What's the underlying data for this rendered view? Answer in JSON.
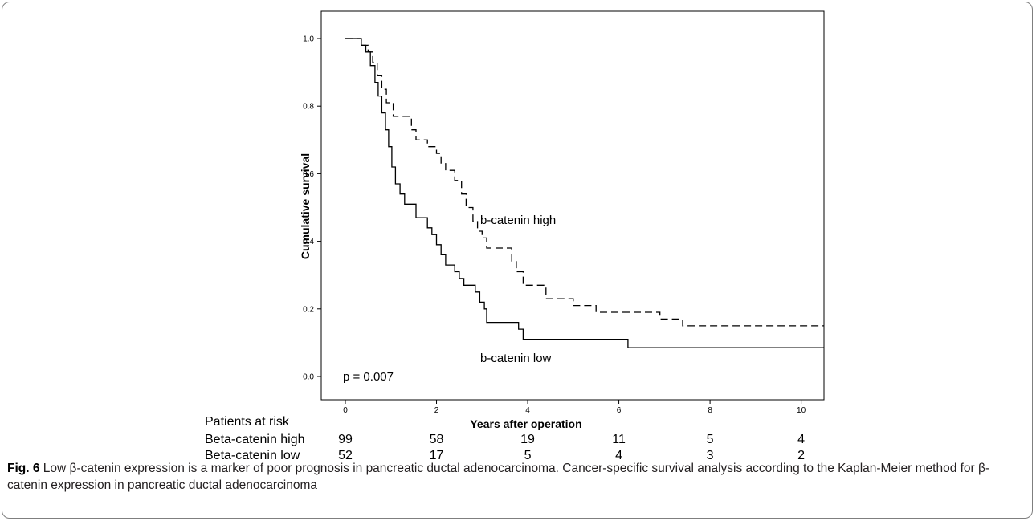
{
  "chart_data": {
    "type": "line",
    "subtype": "kaplan-meier",
    "xlabel": "Years after operation",
    "ylabel": "Cumulative survival",
    "xlim": [
      0,
      10.5
    ],
    "ylim": [
      0,
      1.0
    ],
    "x_ticks": [
      "0",
      "2",
      "4",
      "6",
      "8",
      "10"
    ],
    "y_ticks": [
      "0.0",
      "0.2",
      "0.4",
      "0.6",
      "0.8",
      "1.0"
    ],
    "grid": false,
    "annotation": "p = 0.007",
    "series": [
      {
        "name": "b-catenin high",
        "style": "dashed",
        "points": [
          [
            0,
            1.0
          ],
          [
            0.35,
            1.0
          ],
          [
            0.35,
            0.98
          ],
          [
            0.5,
            0.98
          ],
          [
            0.5,
            0.96
          ],
          [
            0.6,
            0.96
          ],
          [
            0.6,
            0.93
          ],
          [
            0.7,
            0.93
          ],
          [
            0.7,
            0.89
          ],
          [
            0.8,
            0.89
          ],
          [
            0.8,
            0.85
          ],
          [
            0.9,
            0.85
          ],
          [
            0.9,
            0.81
          ],
          [
            1.05,
            0.81
          ],
          [
            1.05,
            0.77
          ],
          [
            1.45,
            0.77
          ],
          [
            1.45,
            0.73
          ],
          [
            1.55,
            0.73
          ],
          [
            1.55,
            0.7
          ],
          [
            1.8,
            0.7
          ],
          [
            1.8,
            0.68
          ],
          [
            2.0,
            0.68
          ],
          [
            2.0,
            0.66
          ],
          [
            2.1,
            0.66
          ],
          [
            2.1,
            0.63
          ],
          [
            2.2,
            0.63
          ],
          [
            2.2,
            0.61
          ],
          [
            2.4,
            0.61
          ],
          [
            2.4,
            0.58
          ],
          [
            2.55,
            0.58
          ],
          [
            2.55,
            0.54
          ],
          [
            2.65,
            0.54
          ],
          [
            2.65,
            0.5
          ],
          [
            2.8,
            0.5
          ],
          [
            2.8,
            0.46
          ],
          [
            2.9,
            0.46
          ],
          [
            2.9,
            0.43
          ],
          [
            3.0,
            0.43
          ],
          [
            3.0,
            0.41
          ],
          [
            3.1,
            0.41
          ],
          [
            3.1,
            0.38
          ],
          [
            3.65,
            0.38
          ],
          [
            3.65,
            0.34
          ],
          [
            3.75,
            0.34
          ],
          [
            3.75,
            0.31
          ],
          [
            3.9,
            0.31
          ],
          [
            3.9,
            0.27
          ],
          [
            4.4,
            0.27
          ],
          [
            4.4,
            0.23
          ],
          [
            5.0,
            0.23
          ],
          [
            5.0,
            0.21
          ],
          [
            5.5,
            0.21
          ],
          [
            5.5,
            0.19
          ],
          [
            6.9,
            0.19
          ],
          [
            6.9,
            0.17
          ],
          [
            7.4,
            0.17
          ],
          [
            7.4,
            0.15
          ],
          [
            10.5,
            0.15
          ]
        ]
      },
      {
        "name": "b-catenin low",
        "style": "solid",
        "points": [
          [
            0,
            1.0
          ],
          [
            0.35,
            1.0
          ],
          [
            0.35,
            0.98
          ],
          [
            0.45,
            0.98
          ],
          [
            0.45,
            0.96
          ],
          [
            0.55,
            0.96
          ],
          [
            0.55,
            0.92
          ],
          [
            0.65,
            0.92
          ],
          [
            0.65,
            0.87
          ],
          [
            0.72,
            0.87
          ],
          [
            0.72,
            0.83
          ],
          [
            0.8,
            0.83
          ],
          [
            0.8,
            0.78
          ],
          [
            0.88,
            0.78
          ],
          [
            0.88,
            0.73
          ],
          [
            0.95,
            0.73
          ],
          [
            0.95,
            0.68
          ],
          [
            1.02,
            0.68
          ],
          [
            1.02,
            0.62
          ],
          [
            1.1,
            0.62
          ],
          [
            1.1,
            0.57
          ],
          [
            1.2,
            0.57
          ],
          [
            1.2,
            0.54
          ],
          [
            1.3,
            0.54
          ],
          [
            1.3,
            0.51
          ],
          [
            1.55,
            0.51
          ],
          [
            1.55,
            0.47
          ],
          [
            1.8,
            0.47
          ],
          [
            1.8,
            0.44
          ],
          [
            1.9,
            0.44
          ],
          [
            1.9,
            0.42
          ],
          [
            2.0,
            0.42
          ],
          [
            2.0,
            0.39
          ],
          [
            2.1,
            0.39
          ],
          [
            2.1,
            0.36
          ],
          [
            2.2,
            0.36
          ],
          [
            2.2,
            0.33
          ],
          [
            2.4,
            0.33
          ],
          [
            2.4,
            0.31
          ],
          [
            2.5,
            0.31
          ],
          [
            2.5,
            0.29
          ],
          [
            2.6,
            0.29
          ],
          [
            2.6,
            0.27
          ],
          [
            2.85,
            0.27
          ],
          [
            2.85,
            0.25
          ],
          [
            2.95,
            0.25
          ],
          [
            2.95,
            0.22
          ],
          [
            3.05,
            0.22
          ],
          [
            3.05,
            0.2
          ],
          [
            3.1,
            0.2
          ],
          [
            3.1,
            0.16
          ],
          [
            3.8,
            0.16
          ],
          [
            3.8,
            0.14
          ],
          [
            3.9,
            0.14
          ],
          [
            3.9,
            0.11
          ],
          [
            6.2,
            0.11
          ],
          [
            6.2,
            0.085
          ],
          [
            10.5,
            0.085
          ]
        ]
      }
    ],
    "risk_table": {
      "title": "Patients at risk",
      "rows": [
        {
          "label": "Beta-catenin high",
          "values": [
            "99",
            "58",
            "19",
            "11",
            "5",
            "4"
          ]
        },
        {
          "label": "Beta-catenin low",
          "values": [
            "52",
            "17",
            "5",
            "4",
            "3",
            "2"
          ]
        }
      ]
    }
  },
  "caption": {
    "lead": "Fig. 6",
    "text": " Low β-catenin expression is a marker of poor prognosis in pancreatic ductal adenocarcinoma. Cancer-specific survival analysis according to the Kaplan-Meier method for β-catenin expression in pancreatic ductal adenocarcinoma"
  },
  "colors": {
    "line": "#000000",
    "frame": "#7f7f7f",
    "caption_text": "#231f20"
  }
}
